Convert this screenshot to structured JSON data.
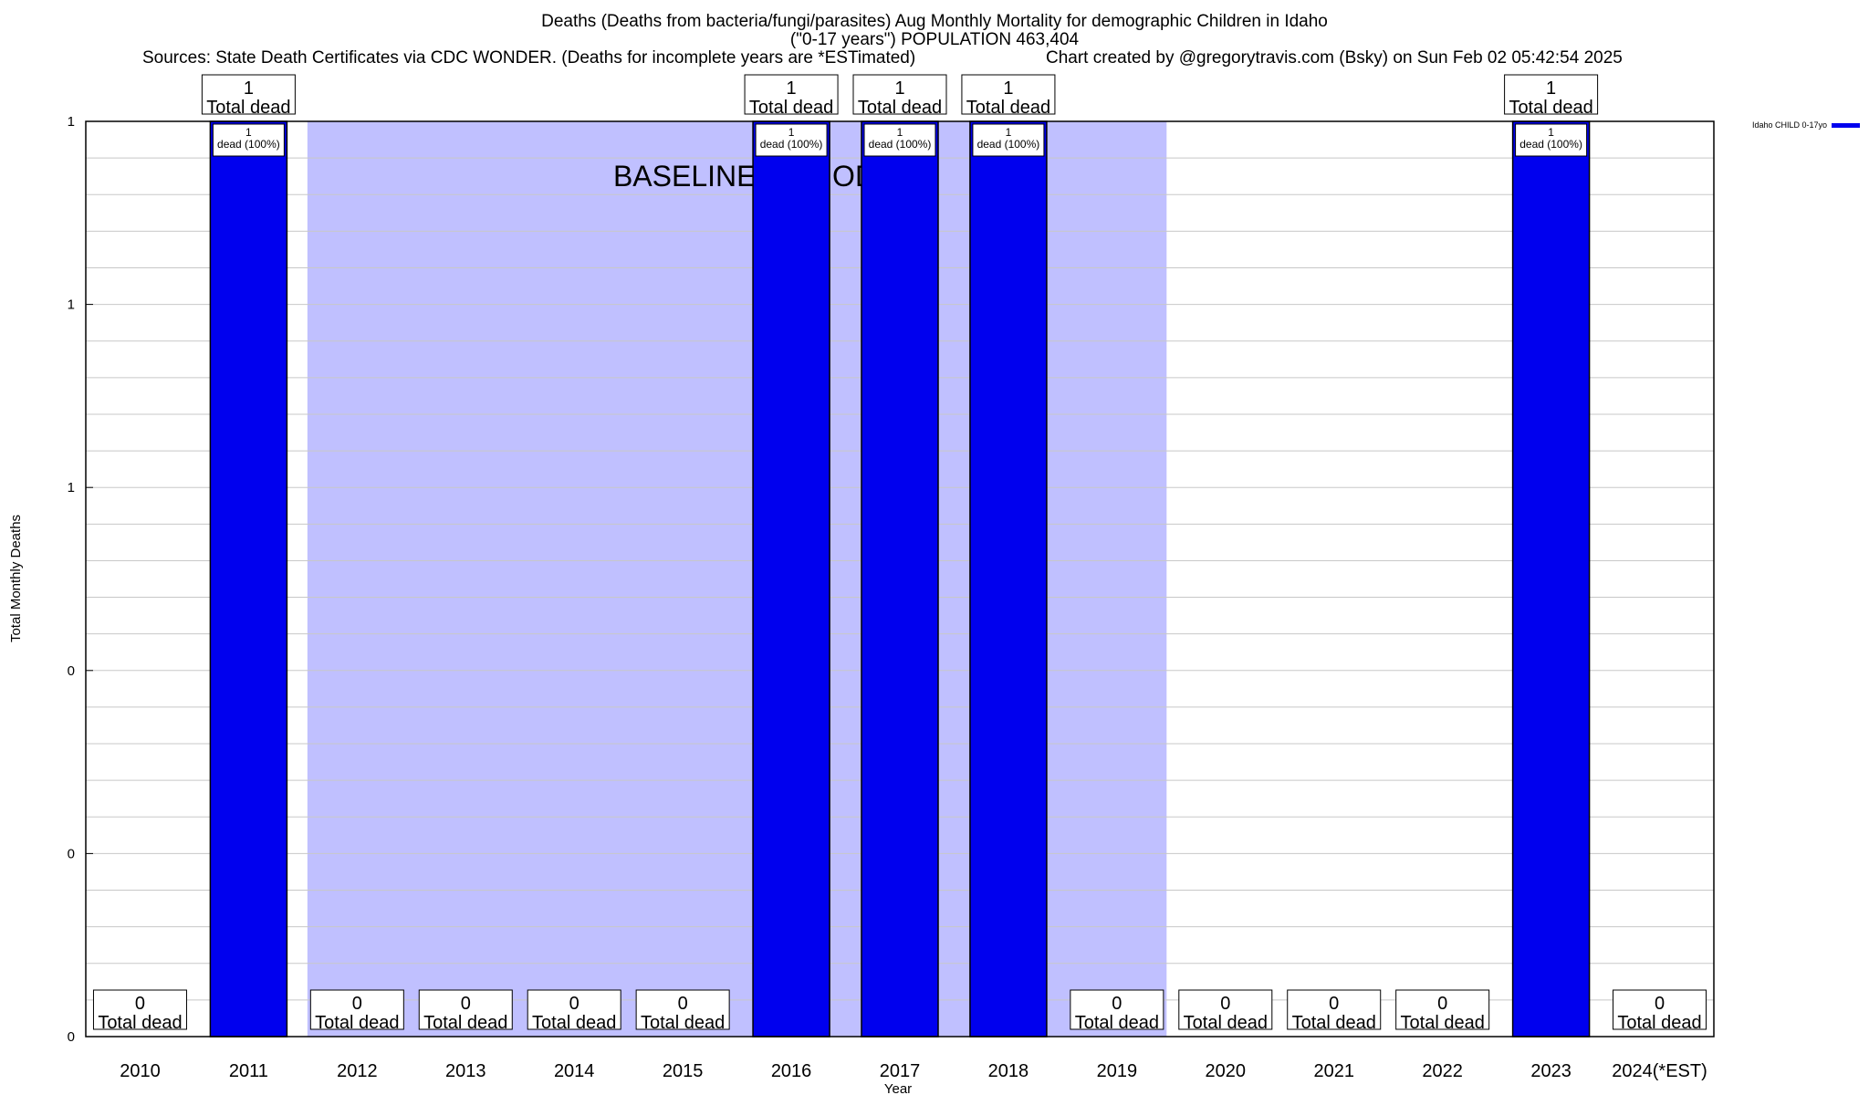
{
  "header": {
    "title_line1": "Deaths (Deaths from bacteria/fungi/parasites) Aug Monthly Mortality for demographic Children in Idaho",
    "title_line2": "(\"0-17 years\") POPULATION 463,404",
    "sources": "Sources: State Death Certificates via CDC WONDER. (Deaths for incomplete years are *ESTimated)",
    "credit": "Chart created by @gregorytravis.com (Bsky) on Sun Feb 02 05:42:54 2025"
  },
  "chart_data": {
    "type": "bar",
    "categories": [
      "2010",
      "2011",
      "2012",
      "2013",
      "2014",
      "2015",
      "2016",
      "2017",
      "2018",
      "2019",
      "2020",
      "2021",
      "2022",
      "2023",
      "2024(*EST)"
    ],
    "series": [
      {
        "name": "Idaho CHILD 0-17yo",
        "values": [
          0,
          1,
          0,
          0,
          0,
          0,
          1,
          1,
          1,
          0,
          0,
          0,
          0,
          1,
          0
        ],
        "color": "#0000ee"
      }
    ],
    "top_labels": [
      "0\nTotal dead",
      "1\nTotal dead",
      "0\nTotal dead",
      "0\nTotal dead",
      "0\nTotal dead",
      "0\nTotal dead",
      "1\nTotal dead",
      "1\nTotal dead",
      "1\nTotal dead",
      "0\nTotal dead",
      "0\nTotal dead",
      "0\nTotal dead",
      "0\nTotal dead",
      "1\nTotal dead",
      "0\nTotal dead"
    ],
    "inner_labels": [
      "",
      "1\ndead (100%)",
      "",
      "",
      "",
      "",
      "1\ndead (100%)",
      "1\ndead (100%)",
      "1\ndead (100%)",
      "",
      "",
      "",
      "",
      "1\ndead (100%)",
      ""
    ],
    "ytick_labels": [
      "0",
      "0",
      "0",
      "1",
      "1",
      "1"
    ],
    "ylim": [
      0,
      1
    ],
    "xlabel": "Year",
    "ylabel": "Total Monthly Deaths",
    "baseline": {
      "label": "BASELINE PERIOD",
      "from": "2012",
      "to": "2019",
      "color": "#c0c0ff"
    },
    "legend_position": "top-right",
    "grid": true
  }
}
